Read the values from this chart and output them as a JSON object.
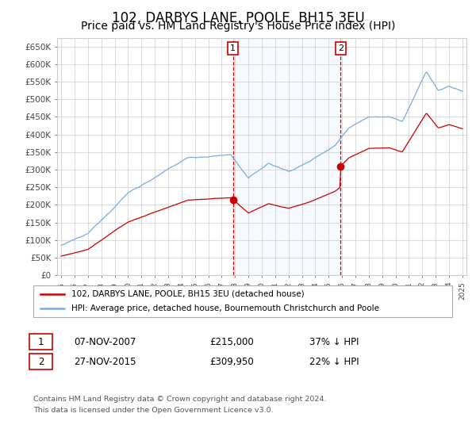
{
  "title": "102, DARBYS LANE, POOLE, BH15 3EU",
  "subtitle": "Price paid vs. HM Land Registry's House Price Index (HPI)",
  "title_fontsize": 12,
  "subtitle_fontsize": 10,
  "ylabel_ticks": [
    "£0",
    "£50K",
    "£100K",
    "£150K",
    "£200K",
    "£250K",
    "£300K",
    "£350K",
    "£400K",
    "£450K",
    "£500K",
    "£550K",
    "£600K",
    "£650K"
  ],
  "ylim": [
    0,
    675000
  ],
  "yticks": [
    0,
    50000,
    100000,
    150000,
    200000,
    250000,
    300000,
    350000,
    400000,
    450000,
    500000,
    550000,
    600000,
    650000
  ],
  "xmin_year": 1995,
  "xmax_year": 2025,
  "xtick_years": [
    1995,
    1996,
    1997,
    1998,
    1999,
    2000,
    2001,
    2002,
    2003,
    2004,
    2005,
    2006,
    2007,
    2008,
    2009,
    2010,
    2011,
    2012,
    2013,
    2014,
    2015,
    2016,
    2017,
    2018,
    2019,
    2020,
    2021,
    2022,
    2023,
    2024,
    2025
  ],
  "sale1_date": 2007.85,
  "sale1_price": 215000,
  "sale1_label": "1",
  "sale1_text": "07-NOV-2007",
  "sale1_amount": "£215,000",
  "sale1_hpi": "37% ↓ HPI",
  "sale2_date": 2015.9,
  "sale2_price": 309950,
  "sale2_label": "2",
  "sale2_text": "27-NOV-2015",
  "sale2_amount": "£309,950",
  "sale2_hpi": "22% ↓ HPI",
  "hpi_color": "#7aaadd",
  "price_color": "#cc0000",
  "shade_color": "#ddeeff",
  "line1_label": "102, DARBYS LANE, POOLE, BH15 3EU (detached house)",
  "line2_label": "HPI: Average price, detached house, Bournemouth Christchurch and Poole",
  "footnote1": "Contains HM Land Registry data © Crown copyright and database right 2024.",
  "footnote2": "This data is licensed under the Open Government Licence v3.0.",
  "background_color": "#ffffff",
  "grid_color": "#cccccc"
}
